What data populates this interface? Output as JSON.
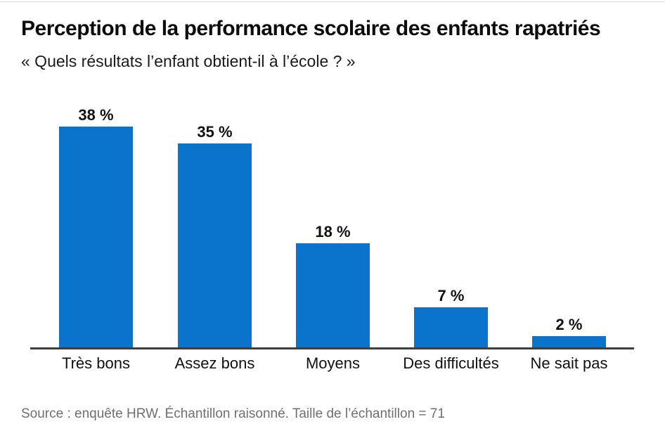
{
  "chart_data": {
    "type": "bar",
    "title": "Perception de la performance scolaire des enfants rapatriés",
    "subtitle": "« Quels résultats l’enfant obtient-il à l’école ? »",
    "categories": [
      "Très bons",
      "Assez bons",
      "Moyens",
      "Des difficultés",
      "Ne sait pas"
    ],
    "values": [
      38,
      35,
      18,
      7,
      2
    ],
    "value_labels": [
      "38 %",
      "35 %",
      "18 %",
      "7 %",
      "2 %"
    ],
    "unit": "%",
    "xlabel": "",
    "ylabel": "",
    "ylim": [
      0,
      42
    ],
    "grid": false,
    "legend": false,
    "source_note": "Source : enquête HRW. Échantillon raisonné. Taille de l’échantillon = 71"
  },
  "colors": {
    "bar_fill": "#0a73cc",
    "axis_line": "#3e3e3e",
    "title_text": "#0d0d0d",
    "body_text": "#111111",
    "source_text": "#6f6f6f"
  }
}
